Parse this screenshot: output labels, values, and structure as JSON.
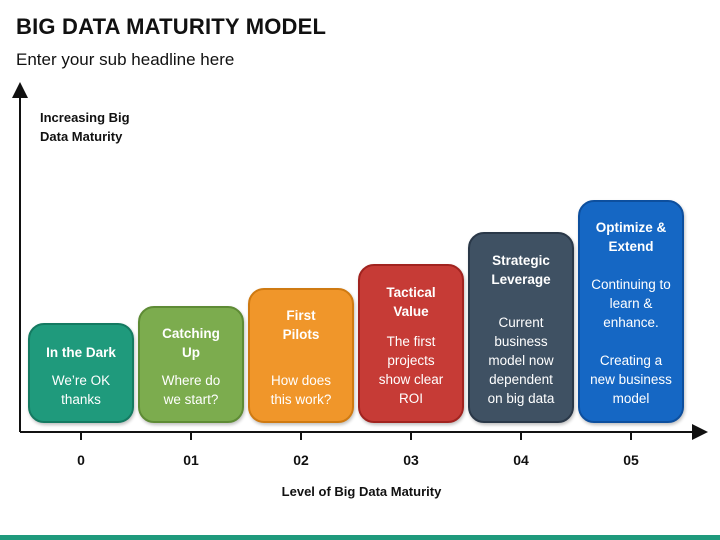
{
  "title": "BIG DATA MATURITY MODEL",
  "subtitle": "Enter your sub headline here",
  "y_axis_label": "Increasing Big\nData Maturity",
  "x_axis_label": "Level of Big Data Maturity",
  "stages": [
    {
      "level": "0",
      "title": "In the Dark",
      "description": "We’re OK\nthanks",
      "color": "#1f9a7c",
      "border": "#147a61"
    },
    {
      "level": "01",
      "title": "Catching\nUp",
      "description": "Where do\nwe start?",
      "color": "#7cac4e",
      "border": "#5e8b35"
    },
    {
      "level": "02",
      "title": "First\nPilots",
      "description": "How does\nthis work?",
      "color": "#f0962a",
      "border": "#cf7a12"
    },
    {
      "level": "03",
      "title": "Tactical\nValue",
      "description": "The first\nprojects\nshow clear\nROI",
      "color": "#c63b36",
      "border": "#a1231f"
    },
    {
      "level": "04",
      "title": "Strategic\nLeverage",
      "description": "Current\nbusiness\nmodel now\ndependent\non big data",
      "color": "#3f5163",
      "border": "#2a3848"
    },
    {
      "level": "05",
      "title": "Optimize &\nExtend",
      "description": "Continuing to\nlearn &\nenhance.\n\nCreating a\nnew business\nmodel",
      "color": "#1567c4",
      "border": "#0d4f9e"
    }
  ],
  "bottom_bar_color": "#1f9a7c"
}
